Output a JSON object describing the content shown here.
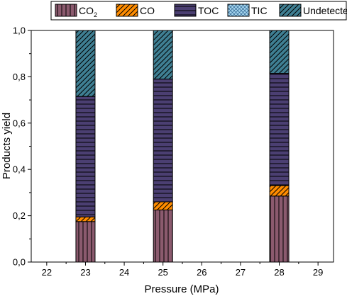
{
  "chart_data": {
    "type": "bar",
    "stacked": true,
    "xlabel": "Pressure (MPa)",
    "ylabel": "Products yield",
    "x_ticks": [
      "22",
      "23",
      "24",
      "25",
      "26",
      "27",
      "28",
      "29"
    ],
    "y_ticks": [
      "0,0",
      "0,2",
      "0,4",
      "0,6",
      "0,8",
      "1,0"
    ],
    "xlim": [
      21.6,
      29.4
    ],
    "ylim": [
      0,
      1.0
    ],
    "categories": [
      23,
      25,
      28
    ],
    "legend_position": "top",
    "series": [
      {
        "name": "CO",
        "subscript": "2",
        "values": [
          0.175,
          0.225,
          0.285
        ],
        "color": "#8B5A6E",
        "pattern": "vertical"
      },
      {
        "name": "CO",
        "subscript": "",
        "values": [
          0.02,
          0.035,
          0.045
        ],
        "color": "#FF8C00",
        "pattern": "diagonal"
      },
      {
        "name": "TOC",
        "subscript": "",
        "values": [
          0.52,
          0.53,
          0.485
        ],
        "color": "#4B3F72",
        "pattern": "horizontal"
      },
      {
        "name": "TIC",
        "subscript": "",
        "values": [
          0.0,
          0.0,
          0.0
        ],
        "color": "#A8D8F0",
        "pattern": "crosshatch"
      },
      {
        "name": "Undetected",
        "subscript": "",
        "values": [
          0.285,
          0.21,
          0.185
        ],
        "color": "#3F7F93",
        "pattern": "diagonal"
      }
    ]
  }
}
